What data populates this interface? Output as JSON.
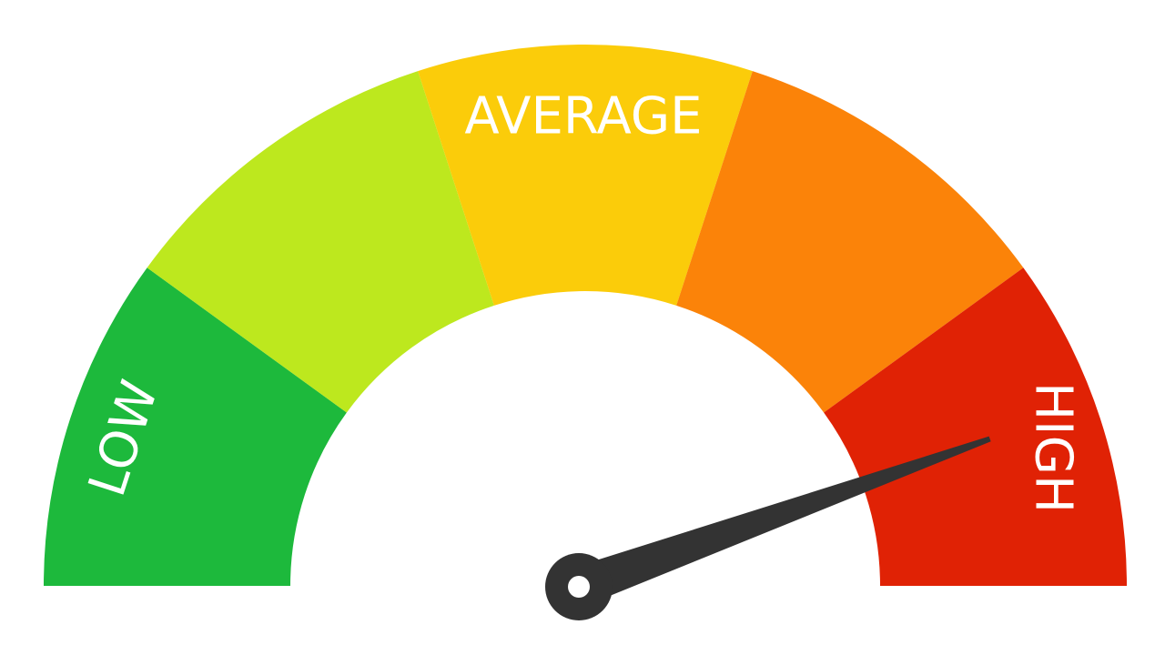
{
  "gauge": {
    "segments": [
      {
        "name": "segment-low",
        "color": "#1db93c"
      },
      {
        "name": "segment-low-mid",
        "color": "#bde81e"
      },
      {
        "name": "segment-average",
        "color": "#fbcc0a"
      },
      {
        "name": "segment-high-mid",
        "color": "#fb8309"
      },
      {
        "name": "segment-high",
        "color": "#e02205"
      }
    ],
    "labels": {
      "low": "LOW",
      "average": "AVERAGE",
      "high": "HIGH"
    },
    "needle": {
      "color": "#333333",
      "reading_fraction": 0.89
    },
    "background": "#ffffff"
  }
}
